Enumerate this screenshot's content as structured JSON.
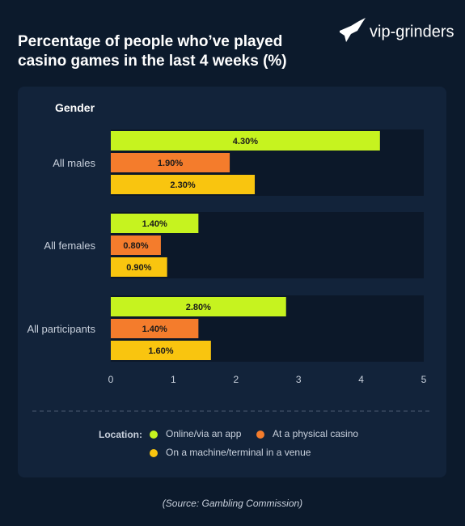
{
  "brand": "vip-grinders",
  "chart_data": {
    "type": "bar",
    "orientation": "horizontal",
    "title": "Percentage of people who’ve played casino games in the last 4 weeks (%)",
    "category_axis_label": "Gender",
    "categories": [
      "All males",
      "All females",
      "All participants"
    ],
    "series": [
      {
        "name": "Online/via an app",
        "color": "#c6f31f",
        "values": [
          4.3,
          1.4,
          2.8
        ],
        "value_labels": [
          "4.30%",
          "1.40%",
          "2.80%"
        ]
      },
      {
        "name": "At a physical casino",
        "color": "#f47c2c",
        "values": [
          1.9,
          0.8,
          1.4
        ],
        "value_labels": [
          "1.90%",
          "0.80%",
          "1.40%"
        ]
      },
      {
        "name": "On a machine/terminal in a venue",
        "color": "#f9c50f",
        "values": [
          2.3,
          0.9,
          1.6
        ],
        "value_labels": [
          "2.30%",
          "0.90%",
          "1.60%"
        ]
      }
    ],
    "xlim": [
      0,
      5
    ],
    "xticks": [
      0,
      1,
      2,
      3,
      4,
      5
    ],
    "legend_title": "Location:",
    "source": "(Source: Gambling Commission)"
  }
}
